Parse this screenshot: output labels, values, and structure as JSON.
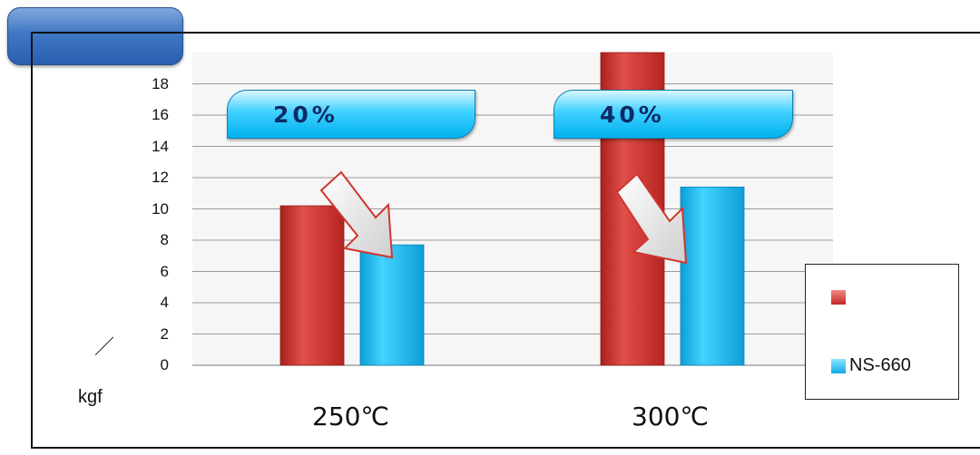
{
  "chart_data": {
    "type": "bar",
    "categories": [
      "250℃",
      "300℃"
    ],
    "series": [
      {
        "name": "",
        "values": [
          10.2,
          20.0
        ],
        "color": "#d0362f"
      },
      {
        "name": "NS-660",
        "values": [
          7.7,
          11.4
        ],
        "color": "#18c0f2"
      }
    ],
    "ylim": [
      0,
      20
    ],
    "yticks": [
      0,
      2,
      4,
      6,
      8,
      10,
      12,
      14,
      16,
      18
    ],
    "ylabel": "kgf",
    "ylabel_prefix": "／",
    "grid": true,
    "legend_position": "right",
    "annotations": [
      {
        "text": "20%",
        "category": "250℃"
      },
      {
        "text": "40%",
        "category": "300℃"
      }
    ]
  },
  "colors": {
    "title_tab": "#3f78c5",
    "callout": "#18c0f2",
    "callout_text": "#0d2a66",
    "arrow_outline": "#d0362f"
  }
}
